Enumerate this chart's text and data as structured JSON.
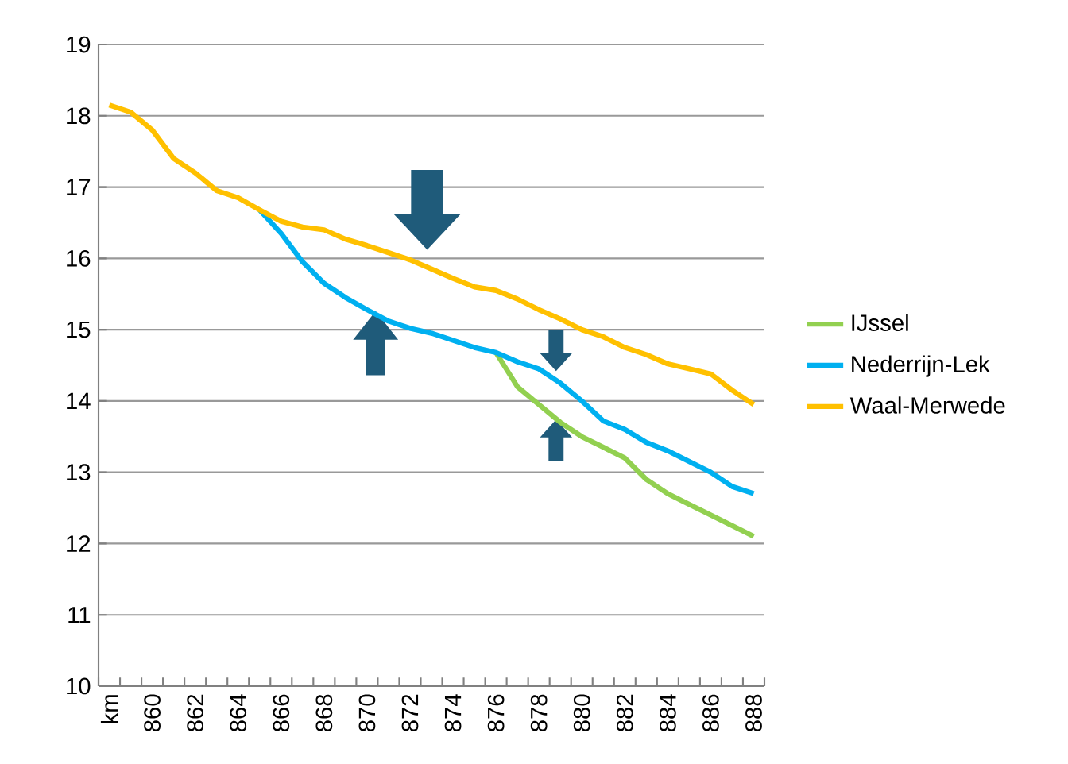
{
  "chart_data": {
    "type": "line",
    "categories": [
      "km",
      null,
      "860",
      null,
      "862",
      null,
      "864",
      null,
      "866",
      null,
      "868",
      null,
      "870",
      null,
      "872",
      null,
      "874",
      null,
      "876",
      null,
      "878",
      null,
      "880",
      null,
      "882",
      null,
      "884",
      null,
      "886",
      null,
      "888"
    ],
    "series": [
      {
        "name": "IJssel",
        "color": "#92d050",
        "values": [
          null,
          null,
          null,
          null,
          null,
          null,
          null,
          null,
          null,
          null,
          null,
          null,
          null,
          null,
          null,
          null,
          null,
          null,
          14.68,
          14.2,
          13.95,
          13.7,
          13.5,
          13.35,
          13.2,
          12.9,
          12.7,
          12.55,
          12.4,
          12.25,
          12.1
        ]
      },
      {
        "name": "Nederrijn-Lek",
        "color": "#00b0f0",
        "values": [
          null,
          null,
          null,
          null,
          null,
          null,
          null,
          16.68,
          16.35,
          15.95,
          15.65,
          15.45,
          15.28,
          15.12,
          15.02,
          14.95,
          14.85,
          14.75,
          14.68,
          14.55,
          14.45,
          14.25,
          14.0,
          13.72,
          13.6,
          13.42,
          13.3,
          13.15,
          13.0,
          12.8,
          12.7
        ]
      },
      {
        "name": "Waal-Merwede",
        "color": "#ffc000",
        "values": [
          18.15,
          18.05,
          17.8,
          17.4,
          17.2,
          16.95,
          16.85,
          16.68,
          16.52,
          16.44,
          16.4,
          16.27,
          16.18,
          16.08,
          15.98,
          15.85,
          15.72,
          15.6,
          15.55,
          15.43,
          15.28,
          15.15,
          15.0,
          14.9,
          14.75,
          14.65,
          14.52,
          14.45,
          14.38,
          14.15,
          13.95
        ]
      }
    ],
    "ylim": [
      10,
      19
    ],
    "yticks": [
      10,
      11,
      12,
      13,
      14,
      15,
      16,
      17,
      18,
      19
    ],
    "grid": "y",
    "legend": "right",
    "marker": "none",
    "line_style": "solid"
  }
}
